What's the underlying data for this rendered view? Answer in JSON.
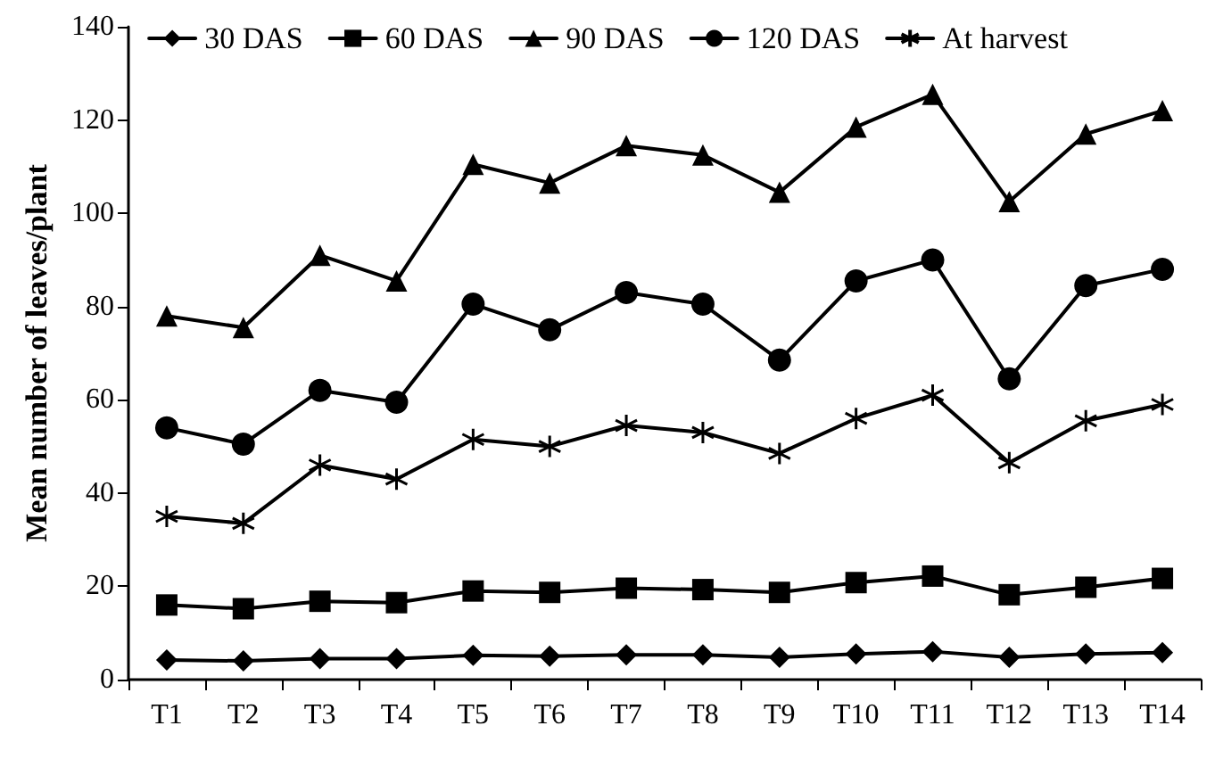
{
  "chart_data": {
    "type": "line",
    "ylabel": "Mean number of leaves/plant",
    "categories": [
      "T1",
      "T2",
      "T3",
      "T4",
      "T5",
      "T6",
      "T7",
      "T8",
      "T9",
      "T10",
      "T11",
      "T12",
      "T13",
      "T14"
    ],
    "series": [
      {
        "name": "30 DAS",
        "color": "#000000",
        "marker": "diamond",
        "values": [
          4.2,
          4,
          4.5,
          4.5,
          5.2,
          5,
          5.3,
          5.3,
          4.8,
          5.5,
          6,
          4.8,
          5.5,
          5.8
        ]
      },
      {
        "name": "60 DAS",
        "color": "#000000",
        "marker": "square",
        "values": [
          16,
          15.2,
          16.8,
          16.5,
          19,
          18.7,
          19.6,
          19.3,
          18.7,
          20.8,
          22.2,
          18.2,
          19.8,
          21.7
        ]
      },
      {
        "name": "90 DAS",
        "color": "#000000",
        "marker": "triangle",
        "values": [
          78,
          75.5,
          91,
          85.5,
          110.5,
          106.5,
          114.5,
          112.5,
          104.5,
          118.5,
          125.5,
          102.5,
          117,
          122
        ]
      },
      {
        "name": "120 DAS",
        "color": "#000000",
        "marker": "circle",
        "values": [
          54,
          50.5,
          62,
          59.5,
          80.5,
          75,
          83,
          80.5,
          68.5,
          85.5,
          90,
          64.5,
          84.5,
          88
        ]
      },
      {
        "name": "At harvest",
        "color": "#000000",
        "marker": "cross",
        "values": [
          35,
          33.5,
          46,
          43,
          51.5,
          50,
          54.5,
          53,
          48.5,
          56,
          61,
          46.5,
          55.5,
          59
        ]
      }
    ],
    "ylim": [
      0,
      140
    ],
    "yticks": [
      0,
      20,
      40,
      60,
      80,
      100,
      120,
      140
    ],
    "grid": false,
    "legend": "top",
    "line_style": "solid"
  }
}
